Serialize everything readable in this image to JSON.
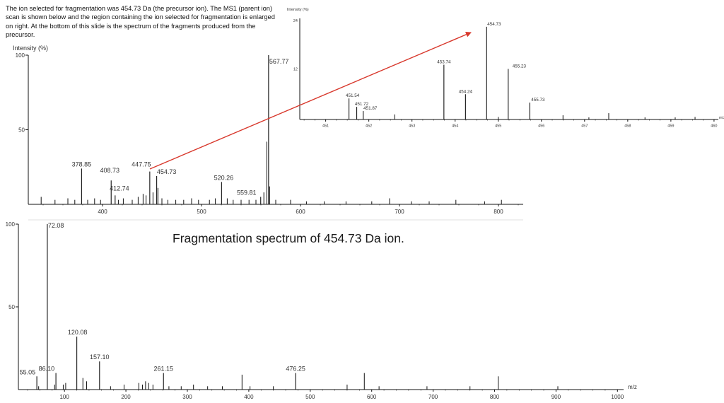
{
  "intro_text": "The ion selected for fragmentation was 454.73 Da (the precursor ion). The MS1 (parent ion) scan is shown below and the region containing the ion selected for fragmentation is enlarged on right. At the bottom of this slide is the spectrum of the fragments produced from the precursor.",
  "fragment_title": "Fragmentation spectrum of 454.73 Da ion.",
  "colors": {
    "arrow": "#d8382c",
    "peaks": "#111111"
  },
  "chart_data": [
    {
      "type": "bar",
      "id": "ms1",
      "ylabel": "Intensity (%)",
      "xlabel": "",
      "xlim": [
        325,
        825
      ],
      "ylim": [
        0,
        100
      ],
      "xticks": [
        400,
        500,
        600,
        700,
        800
      ],
      "yticks": [
        100,
        50
      ],
      "labeled_peaks": [
        {
          "x": 378.85,
          "y": 24,
          "label": "378.85"
        },
        {
          "x": 408.73,
          "y": 16,
          "label": "408.73"
        },
        {
          "x": 412.74,
          "y": 6,
          "label": "412.74"
        },
        {
          "x": 447.75,
          "y": 22,
          "label": "447.75"
        },
        {
          "x": 454.73,
          "y": 19,
          "label": "454.73"
        },
        {
          "x": 520.26,
          "y": 15,
          "label": "520.26"
        },
        {
          "x": 559.81,
          "y": 5,
          "label": "559.81"
        },
        {
          "x": 567.77,
          "y": 100,
          "label": "567.77"
        }
      ],
      "minor_peaks": [
        {
          "x": 338.0,
          "y": 5
        },
        {
          "x": 352.0,
          "y": 3
        },
        {
          "x": 365.0,
          "y": 4
        },
        {
          "x": 372.0,
          "y": 3
        },
        {
          "x": 385.0,
          "y": 3
        },
        {
          "x": 392.0,
          "y": 4
        },
        {
          "x": 398.0,
          "y": 3
        },
        {
          "x": 416.0,
          "y": 3
        },
        {
          "x": 421.0,
          "y": 4
        },
        {
          "x": 430.0,
          "y": 3
        },
        {
          "x": 436.0,
          "y": 5
        },
        {
          "x": 441.0,
          "y": 7
        },
        {
          "x": 444.0,
          "y": 6
        },
        {
          "x": 451.0,
          "y": 8
        },
        {
          "x": 456.0,
          "y": 11
        },
        {
          "x": 460.0,
          "y": 4
        },
        {
          "x": 466.0,
          "y": 3
        },
        {
          "x": 474.0,
          "y": 3
        },
        {
          "x": 482.0,
          "y": 3
        },
        {
          "x": 490.0,
          "y": 4
        },
        {
          "x": 497.0,
          "y": 3
        },
        {
          "x": 508.0,
          "y": 3
        },
        {
          "x": 514.0,
          "y": 4
        },
        {
          "x": 526.0,
          "y": 4
        },
        {
          "x": 532.0,
          "y": 3
        },
        {
          "x": 540.0,
          "y": 3
        },
        {
          "x": 548.0,
          "y": 3
        },
        {
          "x": 555.0,
          "y": 3
        },
        {
          "x": 563.0,
          "y": 8
        },
        {
          "x": 566.0,
          "y": 42
        },
        {
          "x": 568.8,
          "y": 12
        },
        {
          "x": 575.0,
          "y": 3
        },
        {
          "x": 590.0,
          "y": 3
        },
        {
          "x": 606.0,
          "y": 2
        },
        {
          "x": 624.0,
          "y": 2
        },
        {
          "x": 646.0,
          "y": 2
        },
        {
          "x": 672.0,
          "y": 2
        },
        {
          "x": 690.0,
          "y": 4
        },
        {
          "x": 712.0,
          "y": 2
        },
        {
          "x": 730.0,
          "y": 2
        },
        {
          "x": 757.0,
          "y": 3
        },
        {
          "x": 786.0,
          "y": 2
        },
        {
          "x": 803.0,
          "y": 3
        }
      ]
    },
    {
      "type": "bar",
      "id": "ms1-zoom",
      "ylabel": "Intensity (%)",
      "xlabel": "m/z",
      "xlim": [
        450.4,
        460.1
      ],
      "ylim": [
        0,
        24
      ],
      "y_top_label": "24",
      "y_mid_label": "12",
      "xticks": [
        451,
        452,
        453,
        454,
        455,
        456,
        457,
        458,
        459,
        460
      ],
      "labeled_peaks": [
        {
          "x": 451.54,
          "y": 5,
          "label": "451.54"
        },
        {
          "x": 451.72,
          "y": 3,
          "label": "451.72"
        },
        {
          "x": 451.87,
          "y": 2,
          "label": "451.87"
        },
        {
          "x": 453.74,
          "y": 13,
          "label": "453.74"
        },
        {
          "x": 454.24,
          "y": 6,
          "label": "454.24"
        },
        {
          "x": 454.73,
          "y": 22,
          "label": "454.73"
        },
        {
          "x": 455.23,
          "y": 12,
          "label": "455.23"
        },
        {
          "x": 455.73,
          "y": 4,
          "label": "455.73"
        }
      ],
      "minor_peaks": [
        {
          "x": 452.6,
          "y": 1.2
        },
        {
          "x": 455.0,
          "y": 0.6
        },
        {
          "x": 456.5,
          "y": 1.0
        },
        {
          "x": 457.1,
          "y": 0.5
        },
        {
          "x": 457.56,
          "y": 1.5
        },
        {
          "x": 458.4,
          "y": 0.5
        },
        {
          "x": 459.1,
          "y": 0.5
        },
        {
          "x": 459.56,
          "y": 0.6
        }
      ]
    },
    {
      "type": "bar",
      "id": "ms2",
      "ylabel": "",
      "xlabel": "m/z",
      "xlim": [
        25,
        1010
      ],
      "ylim": [
        0,
        100
      ],
      "xticks": [
        100,
        200,
        300,
        400,
        500,
        600,
        700,
        800,
        900,
        1000
      ],
      "yticks": [
        100,
        50
      ],
      "labeled_peaks": [
        {
          "x": 55.05,
          "y": 8,
          "label": "55.05"
        },
        {
          "x": 72.08,
          "y": 100,
          "label": "72.08"
        },
        {
          "x": 86.1,
          "y": 10,
          "label": "86.10"
        },
        {
          "x": 120.08,
          "y": 32,
          "label": "120.08"
        },
        {
          "x": 157.1,
          "y": 17,
          "label": "157.10"
        },
        {
          "x": 261.15,
          "y": 10,
          "label": "261.15"
        },
        {
          "x": 476.25,
          "y": 10,
          "label": "476.25"
        }
      ],
      "minor_peaks": [
        {
          "x": 58.0,
          "y": 2
        },
        {
          "x": 84.0,
          "y": 3
        },
        {
          "x": 98.0,
          "y": 3
        },
        {
          "x": 102.0,
          "y": 4
        },
        {
          "x": 130.0,
          "y": 7
        },
        {
          "x": 136.0,
          "y": 5
        },
        {
          "x": 175.0,
          "y": 2
        },
        {
          "x": 197.0,
          "y": 3
        },
        {
          "x": 221.0,
          "y": 4
        },
        {
          "x": 227.0,
          "y": 3
        },
        {
          "x": 232.0,
          "y": 5
        },
        {
          "x": 237.0,
          "y": 4
        },
        {
          "x": 244.0,
          "y": 3
        },
        {
          "x": 270.0,
          "y": 2
        },
        {
          "x": 290.0,
          "y": 2
        },
        {
          "x": 310.0,
          "y": 3
        },
        {
          "x": 333.0,
          "y": 2
        },
        {
          "x": 357.0,
          "y": 2
        },
        {
          "x": 389.0,
          "y": 9
        },
        {
          "x": 402.0,
          "y": 2
        },
        {
          "x": 440.0,
          "y": 2
        },
        {
          "x": 560.0,
          "y": 3
        },
        {
          "x": 588.0,
          "y": 10
        },
        {
          "x": 612.0,
          "y": 2
        },
        {
          "x": 690.0,
          "y": 2
        },
        {
          "x": 760.0,
          "y": 2
        },
        {
          "x": 806.0,
          "y": 8
        },
        {
          "x": 903.0,
          "y": 2
        }
      ]
    }
  ]
}
